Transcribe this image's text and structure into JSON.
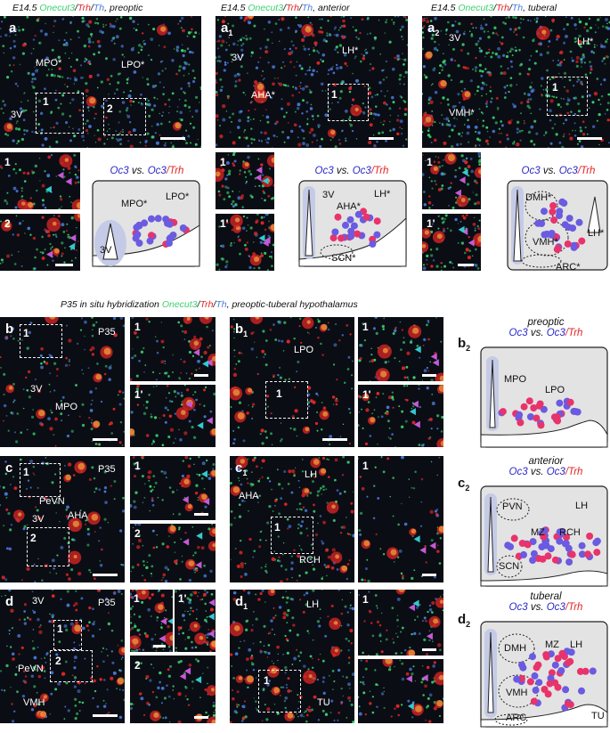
{
  "top_headers": {
    "a": [
      "E14.5 ",
      "Onecut3",
      "/",
      "Trh",
      "/",
      "Th",
      ", preoptic"
    ],
    "a1": [
      "E14.5 ",
      "Onecut3",
      "/",
      "Trh",
      "/",
      "Th",
      ", anterior"
    ],
    "a2": [
      "E14.5 ",
      "Onecut3",
      "/",
      "Trh",
      "/",
      "Th",
      ", tuberal"
    ]
  },
  "mid_header": [
    "P35 in situ hybridization ",
    "Onecut3",
    "/",
    "Trh",
    "/",
    "Th",
    ", preoptic-tuberal hypothalamus"
  ],
  "panel_letters": {
    "a": "a",
    "a1": "a",
    "a1_sub": "1",
    "a2": "a",
    "a2_sub": "2",
    "b": "b",
    "b1": "b",
    "b1_sub": "1",
    "b2": "b",
    "b2_sub": "2",
    "c": "c",
    "c1": "c",
    "c1_sub": "1",
    "c2": "c",
    "c2_sub": "2",
    "d": "d",
    "d1": "d",
    "d1_sub": "1",
    "d2": "d",
    "d2_sub": "2"
  },
  "region_labels": {
    "a": [
      "MPO*",
      "LPO*",
      "3V"
    ],
    "a1": [
      "3V",
      "LH*",
      "AHA*"
    ],
    "a2": [
      "3V",
      "LH*",
      "VMH*"
    ],
    "b": [
      "P35",
      "3V",
      "MPO"
    ],
    "b1": [
      "LPO"
    ],
    "c": [
      "P35",
      "PeVN",
      "3V",
      "AHA"
    ],
    "c1": [
      "LH",
      "AHA",
      "RCH"
    ],
    "d": [
      "3V",
      "P35",
      "PeVN",
      "VMH"
    ],
    "d1": [
      "LH",
      "TU"
    ]
  },
  "inset_labels": [
    "1",
    "2",
    "1'"
  ],
  "schematics": {
    "compare": [
      "Oc3",
      " vs. ",
      "Oc3",
      "/",
      "Trh"
    ],
    "a": [
      "MPO*",
      "LPO*",
      "3V"
    ],
    "a1": [
      "3V",
      "AHA*",
      "LH*",
      "SCN*"
    ],
    "a2": [
      "DMH*",
      "VMH*",
      "LH*",
      "ARC*"
    ],
    "b2_title": "preoptic",
    "b2": [
      "MPO",
      "LPO"
    ],
    "c2_title": "anterior",
    "c2": [
      "PVN",
      "MZ",
      "RCH",
      "LH",
      "SCN"
    ],
    "d2_title": "tuberal",
    "d2": [
      "DMH",
      "MZ",
      "LH",
      "VMH",
      "ARC",
      "TU"
    ]
  },
  "colors": {
    "onecut3": "#3bd16f",
    "trh": "#e02626",
    "th": "#4a7de0",
    "oc3_dot": "#6a5be0",
    "oc3_trh_dot": "#e8336b",
    "arrow_magenta": "#c45ad6",
    "arrow_cyan": "#33c9cf",
    "schem_bg": "#e3e3e3",
    "ventricle": "#c5cbe6"
  }
}
